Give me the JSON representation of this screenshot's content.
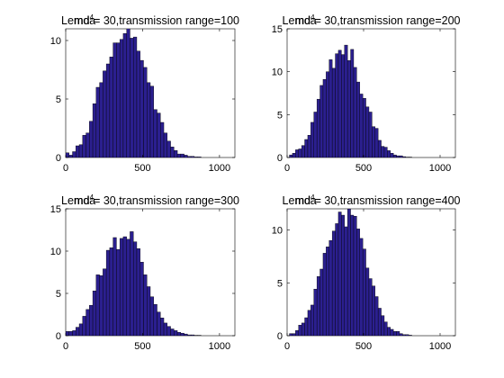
{
  "chart_data": [
    {
      "type": "bar",
      "title": "Lemda = 30,transmission range=100",
      "title_parts": {
        "pre": "Lemda",
        "overlap": "md",
        "sup": "4",
        "post": "= 30,transmission range=100"
      },
      "bin_start": 0,
      "bin_width": 22,
      "values": [
        0.4,
        0.2,
        0.5,
        1,
        1.1,
        1.9,
        2.1,
        3.1,
        4.6,
        6,
        6.4,
        7.4,
        8,
        8.6,
        9.8,
        9.8,
        10.1,
        10.6,
        11.1,
        10.2,
        10.3,
        9.1,
        8.3,
        7.7,
        6.4,
        6.1,
        4.1,
        3.8,
        3,
        2.1,
        1.4,
        0.9,
        0.6,
        0.3,
        0.3,
        0.2,
        0.1,
        0.1,
        0.05,
        0.05
      ],
      "xlim": [
        0,
        1100
      ],
      "ylim": [
        0,
        11
      ],
      "xticks": [
        "0",
        "500",
        "1000"
      ],
      "xtick_values": [
        0,
        500,
        1000
      ],
      "yticks": [
        "0",
        "5",
        "10"
      ],
      "ytick_values": [
        0,
        5,
        10
      ]
    },
    {
      "type": "bar",
      "title": "Lemda = 30,transmission range=200",
      "title_parts": {
        "pre": "Lemda",
        "overlap": "md",
        "sup": "4",
        "post": "= 30,transmission range=200"
      },
      "bin_start": 15,
      "bin_width": 20,
      "values": [
        0.3,
        0.5,
        0.9,
        1,
        1.4,
        2.1,
        2.6,
        4.1,
        5.3,
        6.8,
        8.4,
        9.1,
        10,
        11.4,
        10.4,
        12.1,
        12.5,
        12,
        13.1,
        11.3,
        12.6,
        10.5,
        8.8,
        7.4,
        6.9,
        5.9,
        5.3,
        3.6,
        3.4,
        2,
        1.3,
        1.2,
        0.8,
        0.5,
        0.3,
        0.2,
        0.2,
        0.1,
        0.05,
        0.05
      ],
      "xlim": [
        0,
        1100
      ],
      "ylim": [
        0,
        15
      ],
      "xticks": [
        "0",
        "500",
        "1000"
      ],
      "xtick_values": [
        0,
        500,
        1000
      ],
      "yticks": [
        "0",
        "5",
        "10",
        "15"
      ],
      "ytick_values": [
        0,
        5,
        10,
        15
      ]
    },
    {
      "type": "bar",
      "title": "Lemda = 30,transmission range=300",
      "title_parts": {
        "pre": "Lemda",
        "overlap": "md",
        "sup": "4",
        "post": "= 30,transmission range=300"
      },
      "bin_start": 0,
      "bin_width": 22,
      "values": [
        0.5,
        0.5,
        0.6,
        1,
        1.4,
        2.3,
        3.1,
        3.6,
        5.3,
        7.2,
        7.1,
        7.9,
        10.1,
        10.4,
        11.6,
        10.2,
        11.5,
        11.7,
        11.4,
        12.3,
        11.1,
        10.3,
        8.7,
        7.2,
        5.8,
        4.6,
        3.7,
        2.8,
        2.1,
        1.5,
        1.1,
        0.8,
        0.6,
        0.4,
        0.3,
        0.2,
        0.1,
        0.1,
        0.05,
        0.05
      ],
      "xlim": [
        0,
        1100
      ],
      "ylim": [
        0,
        15
      ],
      "xticks": [
        "0",
        "500",
        "1000"
      ],
      "xtick_values": [
        0,
        500,
        1000
      ],
      "yticks": [
        "0",
        "5",
        "10",
        "15"
      ],
      "ytick_values": [
        0,
        5,
        10,
        15
      ]
    },
    {
      "type": "bar",
      "title": "Lemda = 30,transmission range=400",
      "title_parts": {
        "pre": "Lemda",
        "overlap": "md",
        "sup": "4",
        "post": "= 30,transmission range=400"
      },
      "bin_start": 15,
      "bin_width": 20,
      "values": [
        0.2,
        0.2,
        0.5,
        1,
        1.2,
        1.7,
        2.4,
        2.9,
        4.4,
        5.6,
        6.3,
        7.8,
        8.4,
        9,
        9.9,
        10.6,
        11.7,
        11.4,
        10.3,
        12,
        11.4,
        11.3,
        10.1,
        9.2,
        8.2,
        6.4,
        5.4,
        4.7,
        3.7,
        2.6,
        1.9,
        1.3,
        0.8,
        0.6,
        0.4,
        0.4,
        0.2,
        0.1,
        0.1,
        0.05
      ],
      "xlim": [
        0,
        1100
      ],
      "ylim": [
        0,
        12
      ],
      "xticks": [
        "0",
        "500",
        "1000"
      ],
      "xtick_values": [
        0,
        500,
        1000
      ],
      "yticks": [
        "0",
        "5",
        "10"
      ],
      "ytick_values": [
        0,
        5,
        10
      ]
    }
  ]
}
